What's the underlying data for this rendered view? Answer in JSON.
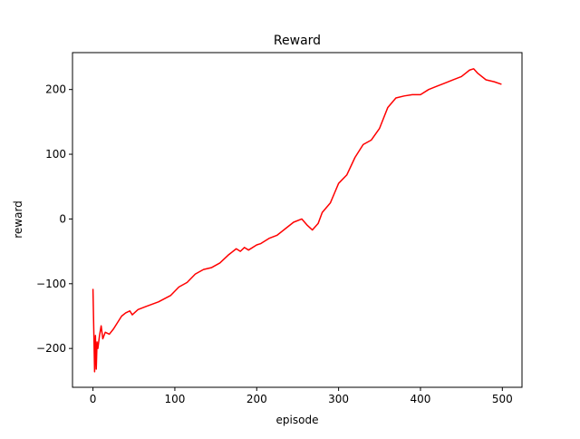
{
  "chart_data": {
    "type": "line",
    "title": "Reward",
    "x_label": "episode",
    "y_label": "reward",
    "x": [
      0,
      2,
      3,
      4,
      5,
      6,
      8,
      10,
      12,
      15,
      20,
      25,
      30,
      35,
      40,
      45,
      48,
      55,
      65,
      80,
      95,
      105,
      115,
      125,
      135,
      145,
      155,
      165,
      175,
      180,
      185,
      190,
      200,
      205,
      215,
      225,
      235,
      245,
      255,
      262,
      268,
      275,
      280,
      290,
      295,
      300,
      310,
      320,
      330,
      340,
      350,
      360,
      370,
      380,
      390,
      400,
      410,
      420,
      430,
      440,
      450,
      460,
      465,
      470,
      480,
      490,
      499
    ],
    "series": [
      {
        "name": "reward",
        "color": "#ff0000",
        "values": [
          -108,
          -236,
          -180,
          -232,
          -190,
          -200,
          -180,
          -165,
          -185,
          -175,
          -178,
          -170,
          -160,
          -150,
          -145,
          -142,
          -148,
          -140,
          -135,
          -128,
          -118,
          -105,
          -98,
          -85,
          -78,
          -75,
          -68,
          -56,
          -46,
          -50,
          -44,
          -48,
          -40,
          -38,
          -30,
          -25,
          -15,
          -5,
          0,
          -10,
          -17,
          -7,
          10,
          25,
          40,
          55,
          68,
          95,
          115,
          122,
          140,
          172,
          187,
          190,
          192,
          192,
          200,
          205,
          210,
          215,
          220,
          230,
          232,
          225,
          215,
          212,
          208
        ]
      }
    ],
    "xlim": [
      -25,
      524
    ],
    "xticks": [
      0,
      100,
      200,
      300,
      400,
      500
    ],
    "ylim": [
      -260,
      257
    ],
    "yticks": [
      {
        "value": -200,
        "label": "−200"
      },
      {
        "value": -100,
        "label": "−100"
      },
      0,
      100,
      200
    ]
  }
}
